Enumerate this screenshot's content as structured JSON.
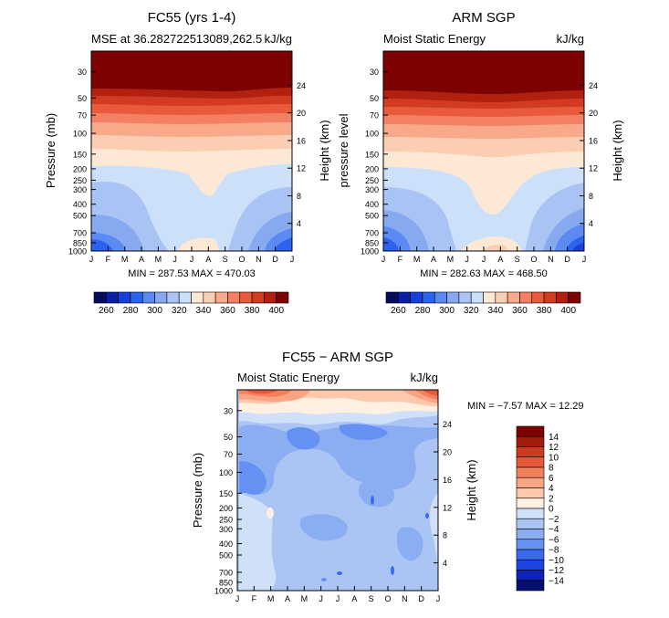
{
  "palette": {
    "mse": [
      "#080a5a",
      "#0a1fa6",
      "#1a3fd9",
      "#2d62ee",
      "#5b8bf2",
      "#86a9f0",
      "#a9c4f4",
      "#cde0fa",
      "#fde8d6",
      "#fbcdb2",
      "#f8a98a",
      "#f48064",
      "#e95a3d",
      "#d23a22",
      "#b2200f",
      "#7d0202"
    ],
    "diff": [
      "#04106e",
      "#0b24b5",
      "#1d45e2",
      "#3a6af0",
      "#6592f2",
      "#8aaef1",
      "#aac4f4",
      "#cfe0f8",
      "#fff0e2",
      "#fcc9ac",
      "#f9a483",
      "#f2805c",
      "#e6583a",
      "#cd3a1f",
      "#a31b0b",
      "#7d0202"
    ]
  },
  "chart_data": [
    {
      "type": "contour",
      "name": "FC55 mse",
      "title": "FC55 (yrs 1-4)",
      "subtitle_left": "MSE at 36.282722513089,262.5",
      "subtitle_right": "kJ/kg",
      "ylabel": "Pressure (mb)",
      "ylabel_right": "Height (km)",
      "stats": "MIN = 287.53  MAX = 470.03",
      "x_ticks": [
        "J",
        "F",
        "M",
        "A",
        "M",
        "J",
        "J",
        "A",
        "S",
        "O",
        "N",
        "D",
        "J"
      ],
      "y_ticks": [
        "30",
        "50",
        "70",
        "100",
        "150",
        "200",
        "250",
        "300",
        "400",
        "500",
        "700",
        "850",
        "1000"
      ],
      "y_ticks_right": [
        "24",
        "20",
        "16",
        "12",
        "8",
        "4"
      ],
      "colorbar_ticks": [
        "260",
        "280",
        "300",
        "320",
        "340",
        "360",
        "380",
        "400"
      ]
    },
    {
      "type": "contour",
      "name": "ARM SGP mse",
      "title": "ARM SGP",
      "subtitle_left": "Moist Static Energy",
      "subtitle_right": "kJ/kg",
      "ylabel": "pressure level",
      "ylabel_right": "Height (km)",
      "stats": "MIN = 282.63  MAX = 468.50",
      "x_ticks": [
        "J",
        "F",
        "M",
        "A",
        "M",
        "J",
        "J",
        "A",
        "S",
        "O",
        "N",
        "D",
        "J"
      ],
      "y_ticks": [
        "30",
        "50",
        "70",
        "100",
        "150",
        "200",
        "250",
        "300",
        "400",
        "500",
        "700",
        "850",
        "1000"
      ],
      "y_ticks_right": [
        "24",
        "20",
        "16",
        "12",
        "8",
        "4"
      ],
      "colorbar_ticks": [
        "260",
        "280",
        "300",
        "320",
        "340",
        "360",
        "380",
        "400"
      ]
    },
    {
      "type": "contour",
      "name": "difference",
      "title": "FC55 − ARM SGP",
      "subtitle_left": "Moist Static Energy",
      "subtitle_right": "kJ/kg",
      "ylabel": "Pressure (mb)",
      "ylabel_right": "Height (km)",
      "stats": "MIN =   −7.57  MAX =   12.29",
      "x_ticks": [
        "J",
        "F",
        "M",
        "A",
        "M",
        "J",
        "J",
        "A",
        "S",
        "O",
        "N",
        "D",
        "J"
      ],
      "y_ticks": [
        "30",
        "50",
        "70",
        "100",
        "150",
        "200",
        "250",
        "300",
        "400",
        "500",
        "700",
        "850",
        "1000"
      ],
      "y_ticks_right": [
        "24",
        "20",
        "16",
        "12",
        "8",
        "4"
      ],
      "colorbar_ticks": [
        "14",
        "12",
        "10",
        "8",
        "6",
        "4",
        "2",
        "0",
        "−2",
        "−4",
        "−6",
        "−8",
        "−10",
        "−12",
        "−14"
      ]
    }
  ]
}
